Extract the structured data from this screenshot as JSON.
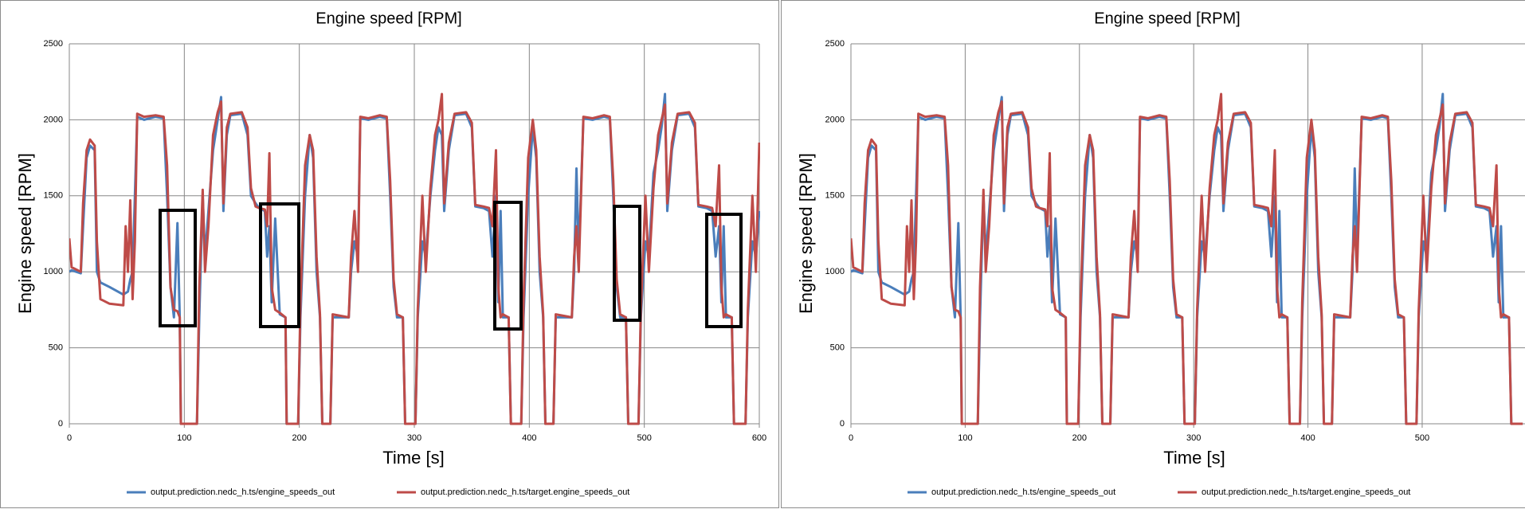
{
  "chart_data": [
    {
      "type": "line",
      "title": "Engine speed [RPM]",
      "x_label": "Time [s]",
      "y_label": "Engine speed [RPM]",
      "x": [
        0,
        2,
        10,
        12,
        15,
        18,
        22,
        24,
        27,
        35,
        47,
        49,
        51,
        53,
        55,
        57,
        59,
        65,
        75,
        82,
        85,
        88,
        91,
        94,
        96,
        97,
        111,
        113,
        116,
        118,
        121,
        125,
        129,
        132,
        134,
        137,
        140,
        150,
        155,
        158,
        162,
        165,
        170,
        172,
        174,
        176,
        179,
        183,
        188,
        189,
        199,
        201,
        205,
        209,
        212,
        215,
        218,
        220,
        227,
        229,
        243,
        245,
        248,
        251,
        253,
        260,
        270,
        276,
        279,
        282,
        285,
        290,
        292,
        301,
        303,
        307,
        310,
        314,
        318,
        321,
        324,
        326,
        330,
        335,
        345,
        350,
        353,
        360,
        365,
        368,
        371,
        373,
        375,
        377,
        382,
        384,
        393,
        395,
        399,
        403,
        406,
        409,
        412,
        414,
        421,
        423,
        437,
        439,
        441,
        443,
        447,
        455,
        465,
        470,
        473,
        476,
        479,
        484,
        486,
        495,
        497,
        501,
        504,
        508,
        512,
        515,
        518,
        520,
        524,
        529,
        539,
        544,
        547,
        554,
        559,
        562,
        565,
        567,
        569,
        571,
        576,
        578,
        588,
        590,
        594,
        597,
        600
      ],
      "series": [
        {
          "name": "output.prediction.nedc_h.ts/engine_speeds_out",
          "color": "#4a7ebb",
          "values": [
            1000,
            1010,
            990,
            1300,
            1750,
            1830,
            1800,
            1000,
            930,
            900,
            850,
            860,
            870,
            950,
            1000,
            1500,
            2020,
            2000,
            2020,
            2010,
            1500,
            900,
            700,
            1320,
            700,
            0,
            0,
            700,
            1500,
            1100,
            1400,
            1800,
            2000,
            2150,
            1400,
            1900,
            2030,
            2040,
            1900,
            1500,
            1450,
            1420,
            1400,
            1100,
            1300,
            800,
            1350,
            720,
            700,
            0,
            0,
            700,
            1500,
            1900,
            1750,
            1000,
            700,
            0,
            0,
            700,
            700,
            1000,
            1200,
            1100,
            2010,
            2000,
            2020,
            2010,
            1500,
            900,
            700,
            700,
            0,
            0,
            700,
            1200,
            1100,
            1500,
            1800,
            1950,
            1900,
            1400,
            1800,
            2030,
            2040,
            1950,
            1430,
            1420,
            1400,
            1100,
            1500,
            800,
            1400,
            700,
            700,
            0,
            0,
            700,
            1500,
            1950,
            1750,
            1000,
            700,
            0,
            0,
            700,
            700,
            1000,
            1680,
            1100,
            2010,
            2000,
            2020,
            2010,
            1500,
            900,
            700,
            700,
            0,
            0,
            700,
            1200,
            1100,
            1650,
            1800,
            1950,
            2170,
            1400,
            1800,
            2030,
            2040,
            1950,
            1430,
            1420,
            1400,
            1100,
            1300,
            800,
            1300,
            700,
            700,
            0,
            0,
            700,
            1200,
            1100,
            1400
          ]
        },
        {
          "name": "output.prediction.nedc_h.ts/target.engine_speeds_out",
          "color": "#be4b48",
          "values": [
            1220,
            1030,
            1000,
            1450,
            1800,
            1870,
            1830,
            1200,
            820,
            790,
            780,
            1300,
            1000,
            1470,
            820,
            1200,
            2040,
            2020,
            2030,
            2020,
            1700,
            900,
            750,
            740,
            700,
            0,
            0,
            900,
            1540,
            1000,
            1300,
            1900,
            2050,
            2120,
            1450,
            1950,
            2040,
            2050,
            1950,
            1550,
            1430,
            1420,
            1410,
            1300,
            1780,
            900,
            750,
            730,
            700,
            0,
            0,
            800,
            1700,
            1900,
            1800,
            1100,
            720,
            0,
            0,
            720,
            700,
            1100,
            1400,
            1000,
            2020,
            2010,
            2030,
            2020,
            1600,
            950,
            720,
            700,
            0,
            0,
            750,
            1500,
            1000,
            1550,
            1900,
            2000,
            2170,
            1450,
            1850,
            2040,
            2050,
            1980,
            1440,
            1430,
            1420,
            1300,
            1800,
            900,
            700,
            720,
            700,
            0,
            0,
            800,
            1750,
            2000,
            1800,
            1100,
            720,
            0,
            0,
            720,
            700,
            1100,
            1300,
            1000,
            2020,
            2010,
            2030,
            2020,
            1600,
            950,
            720,
            700,
            0,
            0,
            750,
            1500,
            1000,
            1550,
            1900,
            2000,
            2100,
            1450,
            1850,
            2040,
            2050,
            1980,
            1440,
            1430,
            1420,
            1300,
            1700,
            900,
            700,
            720,
            700,
            0,
            0,
            750,
            1500,
            1000,
            1850
          ]
        }
      ],
      "xlim": [
        0,
        600
      ],
      "xticks": [
        0,
        100,
        200,
        300,
        400,
        500,
        600
      ],
      "ylim": [
        0,
        2500
      ],
      "yticks": [
        0,
        500,
        1000,
        1500,
        2000,
        2500
      ],
      "grid": true,
      "legend": "bottom"
    },
    {
      "type": "line",
      "title": "Engine speed [RPM]",
      "x_label": "Time [s]",
      "y_label": "Engine speed [RPM]",
      "x": [
        0,
        2,
        10,
        12,
        15,
        18,
        22,
        24,
        27,
        35,
        47,
        49,
        51,
        53,
        55,
        57,
        59,
        65,
        75,
        82,
        85,
        88,
        91,
        94,
        96,
        97,
        111,
        113,
        116,
        118,
        121,
        125,
        129,
        132,
        134,
        137,
        140,
        150,
        155,
        158,
        162,
        165,
        170,
        172,
        174,
        176,
        179,
        183,
        188,
        189,
        199,
        201,
        205,
        209,
        212,
        215,
        218,
        220,
        227,
        229,
        243,
        245,
        248,
        251,
        253,
        260,
        270,
        276,
        279,
        282,
        285,
        290,
        292,
        301,
        303,
        307,
        310,
        314,
        318,
        321,
        324,
        326,
        330,
        335,
        345,
        350,
        353,
        360,
        365,
        368,
        371,
        373,
        375,
        377,
        382,
        384,
        393,
        395,
        399,
        403,
        406,
        409,
        412,
        414,
        421,
        423,
        437,
        439,
        441,
        443,
        447,
        455,
        465,
        470,
        473,
        476,
        479,
        484,
        486,
        495,
        497,
        501,
        504,
        508,
        512,
        515,
        518,
        520,
        524,
        529,
        539,
        544,
        547,
        554,
        559,
        562,
        565,
        567,
        569,
        571,
        576,
        578,
        588
      ],
      "series": [
        {
          "name": "output.prediction.nedc_h.ts/engine_speeds_out",
          "color": "#4a7ebb",
          "values": [
            1000,
            1010,
            990,
            1300,
            1750,
            1830,
            1800,
            1000,
            930,
            900,
            850,
            860,
            870,
            950,
            1000,
            1500,
            2020,
            2000,
            2020,
            2010,
            1500,
            900,
            700,
            1320,
            700,
            0,
            0,
            700,
            1500,
            1100,
            1400,
            1800,
            2000,
            2150,
            1400,
            1900,
            2030,
            2040,
            1900,
            1500,
            1450,
            1420,
            1400,
            1100,
            1300,
            800,
            1350,
            720,
            700,
            0,
            0,
            700,
            1500,
            1900,
            1750,
            1000,
            700,
            0,
            0,
            700,
            700,
            1000,
            1200,
            1100,
            2010,
            2000,
            2020,
            2010,
            1500,
            900,
            700,
            700,
            0,
            0,
            700,
            1200,
            1100,
            1500,
            1800,
            1950,
            1900,
            1400,
            1800,
            2030,
            2040,
            1950,
            1430,
            1420,
            1400,
            1100,
            1500,
            800,
            1400,
            700,
            700,
            0,
            0,
            700,
            1500,
            1950,
            1750,
            1000,
            700,
            0,
            0,
            700,
            700,
            1000,
            1680,
            1100,
            2010,
            2000,
            2020,
            2010,
            1500,
            900,
            700,
            700,
            0,
            0,
            700,
            1200,
            1100,
            1650,
            1800,
            1950,
            2170,
            1400,
            1800,
            2030,
            2040,
            1950,
            1430,
            1420,
            1400,
            1100,
            1300,
            800,
            1300,
            700,
            700,
            0,
            0
          ]
        },
        {
          "name": "output.prediction.nedc_h.ts/target.engine_speeds_out",
          "color": "#be4b48",
          "values": [
            1220,
            1030,
            1000,
            1450,
            1800,
            1870,
            1830,
            1200,
            820,
            790,
            780,
            1300,
            1000,
            1470,
            820,
            1200,
            2040,
            2020,
            2030,
            2020,
            1700,
            900,
            750,
            740,
            700,
            0,
            0,
            900,
            1540,
            1000,
            1300,
            1900,
            2050,
            2120,
            1450,
            1950,
            2040,
            2050,
            1950,
            1550,
            1430,
            1420,
            1410,
            1300,
            1780,
            900,
            750,
            730,
            700,
            0,
            0,
            800,
            1700,
            1900,
            1800,
            1100,
            720,
            0,
            0,
            720,
            700,
            1100,
            1400,
            1000,
            2020,
            2010,
            2030,
            2020,
            1600,
            950,
            720,
            700,
            0,
            0,
            750,
            1500,
            1000,
            1550,
            1900,
            2000,
            2170,
            1450,
            1850,
            2040,
            2050,
            1980,
            1440,
            1430,
            1420,
            1300,
            1800,
            900,
            700,
            720,
            700,
            0,
            0,
            800,
            1750,
            2000,
            1800,
            1100,
            720,
            0,
            0,
            720,
            700,
            1100,
            1300,
            1000,
            2020,
            2010,
            2030,
            2020,
            1600,
            950,
            720,
            700,
            0,
            0,
            750,
            1500,
            1000,
            1550,
            1900,
            2000,
            2100,
            1450,
            1850,
            2040,
            2050,
            1980,
            1440,
            1430,
            1420,
            1300,
            1700,
            900,
            700,
            720,
            700,
            0,
            0
          ]
        }
      ],
      "xlim": [
        0,
        590
      ],
      "xticks": [
        0,
        100,
        200,
        300,
        400,
        500
      ],
      "ylim": [
        0,
        2500
      ],
      "yticks": [
        0,
        500,
        1000,
        1500,
        2000,
        2500
      ],
      "grid": true,
      "legend": "bottom"
    }
  ]
}
